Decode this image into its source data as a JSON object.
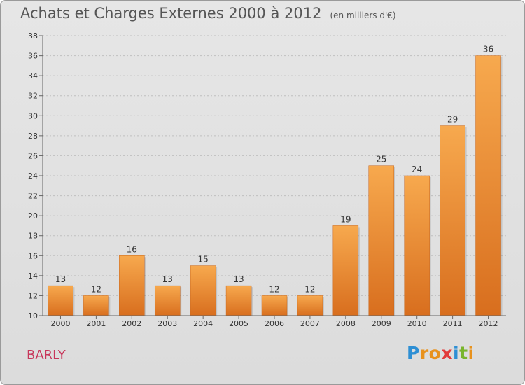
{
  "title": "Achats et Charges Externes 2000 à 2012",
  "unit": "(en milliers d'€)",
  "commune": "BARLY",
  "logo": {
    "letters": [
      "P",
      "r",
      "o",
      "x",
      "i",
      "t",
      "i"
    ],
    "colors": [
      "#2e8fd4",
      "#e8921d",
      "#e8921d",
      "#e23a3a",
      "#2e8fd4",
      "#79b52c",
      "#e8921d"
    ]
  },
  "colors": {
    "bar_top": "#f7a94e",
    "bar_bottom": "#d86e1e",
    "axis": "#666666",
    "grid": "#bfbfbf"
  },
  "chart_data": {
    "type": "bar",
    "title": "Achats et Charges Externes 2000 à 2012",
    "xlabel": "",
    "ylabel": "",
    "categories": [
      "2000",
      "2001",
      "2002",
      "2003",
      "2004",
      "2005",
      "2006",
      "2007",
      "2008",
      "2009",
      "2010",
      "2011",
      "2012"
    ],
    "values": [
      13,
      12,
      16,
      13,
      15,
      13,
      12,
      12,
      19,
      25,
      24,
      29,
      36
    ],
    "ylim": [
      10,
      38
    ],
    "yticks": [
      10,
      12,
      14,
      16,
      18,
      20,
      22,
      24,
      26,
      28,
      30,
      32,
      34,
      36,
      38
    ],
    "grid": true
  }
}
